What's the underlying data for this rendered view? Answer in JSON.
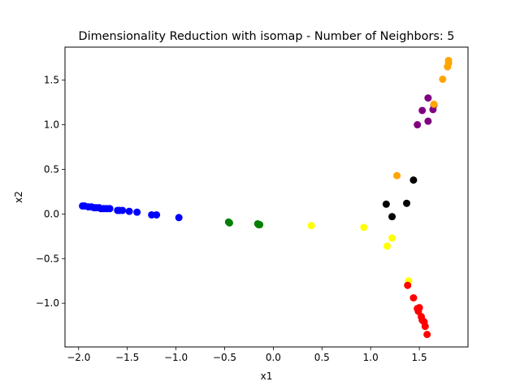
{
  "chart_data": {
    "type": "scatter",
    "title": "Dimensionality Reduction with isomap - Number of Neighbors: 5",
    "xlabel": "x1",
    "ylabel": "x2",
    "xlim": [
      -2.14,
      2.0
    ],
    "ylim": [
      -1.49,
      1.87
    ],
    "xticks": [
      -2.0,
      -1.5,
      -1.0,
      -0.5,
      0.0,
      0.5,
      1.0,
      1.5
    ],
    "xtick_labels": [
      "−2.0",
      "−1.5",
      "−1.0",
      "−0.5",
      "0.0",
      "0.5",
      "1.0",
      "1.5"
    ],
    "yticks": [
      -1.0,
      -0.5,
      0.0,
      0.5,
      1.0,
      1.5
    ],
    "ytick_labels": [
      "−1.0",
      "−0.5",
      "0.0",
      "0.5",
      "1.0",
      "1.5"
    ],
    "grid": false,
    "legend": "none",
    "series": [
      {
        "color": "#0000ff",
        "points": [
          [
            -1.96,
            0.09
          ],
          [
            -1.94,
            0.09
          ],
          [
            -1.9,
            0.08
          ],
          [
            -1.87,
            0.08
          ],
          [
            -1.84,
            0.07
          ],
          [
            -1.82,
            0.07
          ],
          [
            -1.79,
            0.07
          ],
          [
            -1.77,
            0.06
          ],
          [
            -1.74,
            0.06
          ],
          [
            -1.71,
            0.06
          ],
          [
            -1.68,
            0.06
          ],
          [
            -1.6,
            0.04
          ],
          [
            -1.58,
            0.04
          ],
          [
            -1.55,
            0.04
          ],
          [
            -1.48,
            0.03
          ],
          [
            -1.4,
            0.02
          ],
          [
            -1.25,
            -0.01
          ],
          [
            -1.2,
            -0.01
          ],
          [
            -0.97,
            -0.04
          ]
        ]
      },
      {
        "color": "#008000",
        "points": [
          [
            -0.46,
            -0.09
          ],
          [
            -0.45,
            -0.1
          ],
          [
            -0.16,
            -0.11
          ],
          [
            -0.15,
            -0.12
          ],
          [
            -0.14,
            -0.12
          ]
        ]
      },
      {
        "color": "#ffff00",
        "points": [
          [
            0.39,
            -0.13
          ],
          [
            0.93,
            -0.15
          ],
          [
            1.22,
            -0.27
          ],
          [
            1.17,
            -0.36
          ],
          [
            1.39,
            -0.75
          ]
        ]
      },
      {
        "color": "#000000",
        "points": [
          [
            1.44,
            0.38
          ],
          [
            1.16,
            0.11
          ],
          [
            1.37,
            0.12
          ],
          [
            1.22,
            -0.03
          ]
        ]
      },
      {
        "color": "#ff0000",
        "points": [
          [
            1.38,
            -0.8
          ],
          [
            1.44,
            -0.94
          ],
          [
            1.48,
            -1.06
          ],
          [
            1.5,
            -1.05
          ],
          [
            1.49,
            -1.09
          ],
          [
            1.52,
            -1.15
          ],
          [
            1.53,
            -1.19
          ],
          [
            1.55,
            -1.21
          ],
          [
            1.56,
            -1.26
          ],
          [
            1.58,
            -1.35
          ]
        ]
      },
      {
        "color": "#800080",
        "points": [
          [
            1.59,
            1.3
          ],
          [
            1.53,
            1.16
          ],
          [
            1.65,
            1.22
          ],
          [
            1.64,
            1.17
          ],
          [
            1.59,
            1.04
          ],
          [
            1.48,
            1.0
          ]
        ]
      },
      {
        "color": "#ffa500",
        "points": [
          [
            1.8,
            1.72
          ],
          [
            1.8,
            1.69
          ],
          [
            1.79,
            1.65
          ],
          [
            1.74,
            1.51
          ],
          [
            1.65,
            1.23
          ],
          [
            1.27,
            0.43
          ]
        ]
      }
    ]
  }
}
